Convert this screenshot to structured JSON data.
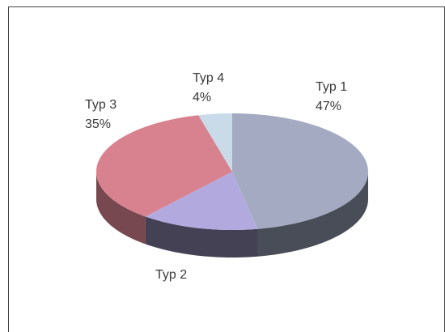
{
  "chart_data": {
    "type": "pie3d",
    "categories": [
      "Typ 1",
      "Typ 2",
      "Typ 3",
      "Typ 4"
    ],
    "values": [
      47,
      14,
      35,
      4
    ],
    "value_labels": [
      "47%",
      null,
      "35%",
      "4%"
    ],
    "colors": [
      "#a3aac2",
      "#b2aadf",
      "#d8828f",
      "#c9dbe9"
    ]
  }
}
